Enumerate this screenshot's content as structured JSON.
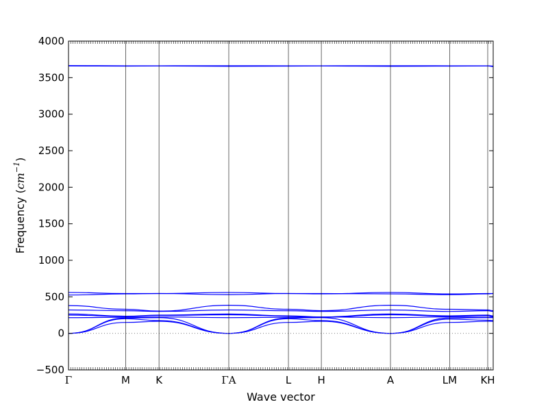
{
  "chart_data": {
    "type": "line",
    "title": "",
    "xlabel": "Wave vector",
    "ylabel": "Frequency (cm⁻¹)",
    "ylabel_prefix": "Frequency (",
    "ylabel_unit": "cm",
    "ylabel_exponent": "−1",
    "ylabel_suffix": ")",
    "ylim": [
      -500,
      4000
    ],
    "yticks": [
      -500,
      0,
      500,
      1000,
      1500,
      2000,
      2500,
      3000,
      3500,
      4000
    ],
    "xlim": [
      0,
      1
    ],
    "kpath": [
      {
        "label": "Γ",
        "x": 0.0
      },
      {
        "label": "M",
        "x": 0.1347
      },
      {
        "label": "K",
        "x": 0.2131
      },
      {
        "label": "ΓA",
        "x": 0.3774
      },
      {
        "label": "L",
        "x": 0.5178
      },
      {
        "label": "H",
        "x": 0.5953
      },
      {
        "label": "A",
        "x": 0.7581
      },
      {
        "label": "LM",
        "x": 0.8975
      },
      {
        "label": "KH",
        "x": 0.9871
      }
    ],
    "zero_line": {
      "y": 0,
      "style": "dotted",
      "color": "#808080"
    },
    "line_color": "#0000ff",
    "grid": false,
    "series": [
      {
        "x": [
          0,
          0.1347,
          0.2131,
          0.3774,
          0.5178,
          0.5953,
          0.7581,
          0.8975,
          0.9871,
          1.0
        ],
        "y": [
          0,
          150,
          165,
          0,
          150,
          165,
          0,
          150,
          165,
          165
        ]
      },
      {
        "x": [
          0,
          0.1347,
          0.2131,
          0.3774,
          0.5178,
          0.5953,
          0.7581,
          0.8975,
          0.9871,
          1.0
        ],
        "y": [
          0,
          200,
          175,
          0,
          200,
          175,
          0,
          195,
          180,
          175
        ]
      },
      {
        "x": [
          0,
          0.1347,
          0.2131,
          0.3774,
          0.5178,
          0.5953,
          0.7581,
          0.8975,
          0.9871,
          1.0
        ],
        "y": [
          0,
          210,
          215,
          0,
          210,
          215,
          0,
          210,
          215,
          215
        ]
      },
      {
        "x": [
          0,
          0.1347,
          0.2131,
          0.3774,
          0.5178,
          0.5953,
          0.7581,
          0.8975,
          0.9871,
          1.0
        ],
        "y": [
          215,
          220,
          225,
          215,
          220,
          225,
          215,
          225,
          220,
          225
        ]
      },
      {
        "x": [
          0,
          0.1347,
          0.2131,
          0.3774,
          0.5178,
          0.5953,
          0.7581,
          0.8975,
          0.9871,
          1.0
        ],
        "y": [
          250,
          230,
          245,
          255,
          235,
          220,
          255,
          235,
          240,
          230
        ]
      },
      {
        "x": [
          0,
          0.1347,
          0.2131,
          0.3774,
          0.5178,
          0.5953,
          0.7581,
          0.8975,
          0.9871,
          1.0
        ],
        "y": [
          265,
          235,
          250,
          265,
          240,
          225,
          265,
          240,
          250,
          240
        ]
      },
      {
        "x": [
          0,
          0.1347,
          0.2131,
          0.3774,
          0.5178,
          0.5953,
          0.7581,
          0.8975,
          0.9871,
          1.0
        ],
        "y": [
          320,
          310,
          300,
          320,
          310,
          300,
          320,
          300,
          310,
          300
        ]
      },
      {
        "x": [
          0,
          0.1347,
          0.2131,
          0.3774,
          0.5178,
          0.5953,
          0.7581,
          0.8975,
          0.9871,
          1.0
        ],
        "y": [
          380,
          330,
          305,
          385,
          330,
          310,
          385,
          330,
          320,
          310
        ]
      },
      {
        "x": [
          0,
          0.1347,
          0.2131,
          0.3774,
          0.5178,
          0.5953,
          0.7581,
          0.8975,
          0.9871,
          1.0
        ],
        "y": [
          525,
          540,
          545,
          530,
          545,
          545,
          540,
          530,
          540,
          545
        ]
      },
      {
        "x": [
          0,
          0.1347,
          0.2131,
          0.3774,
          0.5178,
          0.5953,
          0.7581,
          0.8975,
          0.9871,
          1.0
        ],
        "y": [
          560,
          545,
          545,
          560,
          545,
          540,
          560,
          540,
          545,
          545
        ]
      },
      {
        "x": [
          0,
          0.1347,
          0.2131,
          0.3774,
          0.5178,
          0.5953,
          0.7581,
          0.8975,
          0.9871,
          1.0
        ],
        "y": [
          3660,
          3658,
          3660,
          3655,
          3658,
          3660,
          3655,
          3658,
          3660,
          3652
        ]
      },
      {
        "x": [
          0,
          0.1347,
          0.2131,
          0.3774,
          0.5178,
          0.5953,
          0.7581,
          0.8975,
          0.9871,
          1.0
        ],
        "y": [
          3665,
          3662,
          3662,
          3663,
          3662,
          3662,
          3663,
          3662,
          3662,
          3658
        ]
      }
    ]
  }
}
